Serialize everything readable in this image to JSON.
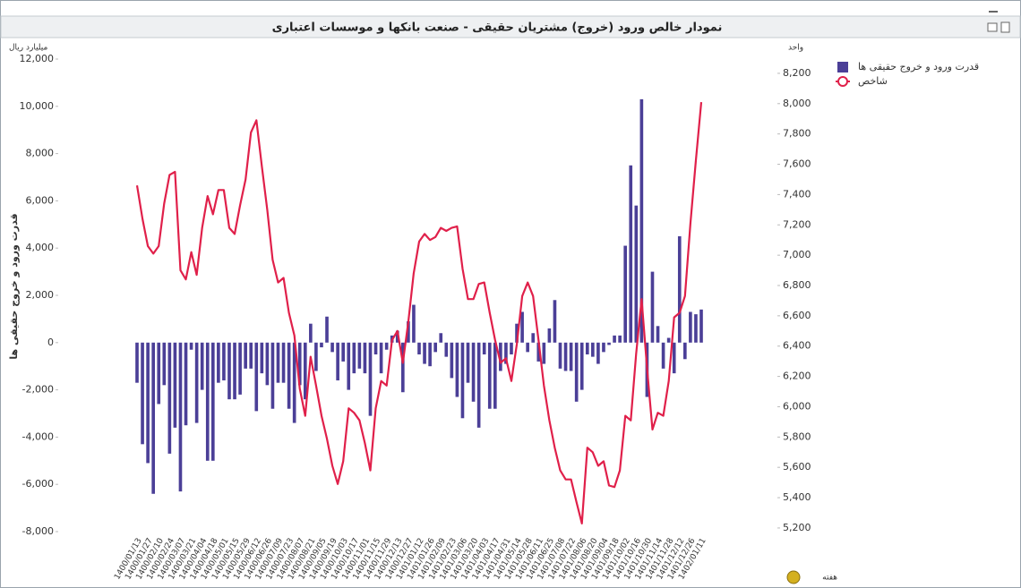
{
  "chart_data": {
    "type": "bar-line",
    "title": "نمودار خالص ورود (خروج) مشتریان حقیقی - صنعت بانکها و موسسات اعتباری",
    "y_unit": "میلیارد ریال",
    "y2_unit": "واحد",
    "ylabel": "قدرت ورود و خروج حقیقی ها",
    "xlabel": "هفته",
    "categories": [
      "1400/01/13",
      null,
      "1400/01/27",
      null,
      "1400/02/10",
      null,
      "1400/02/24",
      null,
      "1400/03/07",
      null,
      "1400/03/21",
      null,
      "1400/04/04",
      null,
      "1400/04/18",
      null,
      "1400/05/01",
      null,
      "1400/05/15",
      null,
      "1400/05/29",
      null,
      "1400/06/12",
      null,
      "1400/06/26",
      null,
      "1400/07/09",
      null,
      "1400/07/23",
      null,
      "1400/08/07",
      null,
      "1400/08/21",
      null,
      "1400/09/05",
      null,
      "1400/09/19",
      null,
      "1400/10/03",
      null,
      "1400/10/17",
      null,
      "1400/11/01",
      null,
      "1400/11/15",
      null,
      "1400/11/29",
      null,
      "1400/12/13",
      null,
      "1400/12/27",
      null,
      "1401/01/12",
      null,
      "1401/01/26",
      null,
      "1401/02/09",
      null,
      "1401/02/23",
      null,
      "1401/03/06",
      null,
      "1401/03/20",
      null,
      "1401/04/03",
      null,
      "1401/04/17",
      null,
      "1401/04/31",
      null,
      "1401/05/14",
      null,
      "1401/05/28",
      null,
      "1401/06/11",
      null,
      "1401/06/25",
      null,
      "1401/07/08",
      null,
      "1401/07/22",
      null,
      "1401/08/06",
      null,
      "1401/08/20",
      null,
      "1401/09/04",
      null,
      "1401/09/18",
      null,
      "1401/10/02",
      null,
      "1401/10/16",
      null,
      "1401/10/30",
      null,
      "1401/11/14",
      null,
      "1401/11/28",
      null,
      "1401/12/12",
      null,
      "1401/12/26",
      null,
      "1402/01/11"
    ],
    "series": [
      {
        "name": "قدرت ورود و خروج حقیقی ها",
        "type": "bar",
        "color": "#4b3f97",
        "values": [
          -1700,
          -4300,
          -5100,
          -6400,
          -2600,
          -1800,
          -4700,
          -3600,
          -6300,
          -3500,
          -300,
          -3400,
          -2000,
          -5000,
          -5000,
          -1700,
          -1600,
          -2400,
          -2400,
          -2200,
          -1100,
          -1100,
          -2900,
          -1300,
          -1800,
          -2800,
          -1700,
          -1700,
          -2800,
          -3400,
          -1800,
          -2400,
          800,
          -1200,
          -200,
          1100,
          -400,
          -1600,
          -800,
          -2000,
          -1300,
          -1100,
          -1300,
          -3100,
          -500,
          -1300,
          -300,
          300,
          500,
          -2100,
          900,
          1600,
          -500,
          -900,
          -1000,
          -400,
          400,
          -600,
          -1500,
          -2300,
          -3200,
          -1700,
          -2500,
          -3600,
          -500,
          -2800,
          -2800,
          -1200,
          -900,
          -500,
          800,
          1300,
          -400,
          400,
          -800,
          -900,
          600,
          1800,
          -1100,
          -1200,
          -1200,
          -2500,
          -2000,
          -500,
          -600,
          -900,
          -400,
          -100,
          300,
          300,
          4100,
          7500,
          5800,
          10300,
          -2300,
          3000,
          700,
          -1100,
          200,
          -1300,
          4500,
          -700,
          1300,
          1200,
          1400
        ]
      },
      {
        "name": "شاخص",
        "type": "line",
        "axis": "y2",
        "color": "#e0204a",
        "values": [
          7460,
          7240,
          7060,
          7010,
          7060,
          7340,
          7530,
          7550,
          6900,
          6840,
          7020,
          6870,
          7180,
          7390,
          7270,
          7430,
          7430,
          7180,
          7140,
          7330,
          7500,
          7810,
          7890,
          7590,
          7300,
          6970,
          6820,
          6850,
          6620,
          6470,
          6120,
          5940,
          6330,
          6140,
          5940,
          5790,
          5610,
          5490,
          5640,
          5990,
          5960,
          5910,
          5760,
          5580,
          5990,
          6170,
          6140,
          6440,
          6500,
          6290,
          6560,
          6880,
          7090,
          7140,
          7100,
          7120,
          7180,
          7160,
          7180,
          7190,
          6910,
          6710,
          6710,
          6810,
          6820,
          6620,
          6440,
          6290,
          6320,
          6170,
          6410,
          6730,
          6820,
          6730,
          6440,
          6140,
          5910,
          5730,
          5580,
          5520,
          5520,
          5370,
          5230,
          5730,
          5700,
          5610,
          5640,
          5480,
          5470,
          5580,
          5940,
          5910,
          6350,
          6710,
          6260,
          5850,
          5960,
          5940,
          6170,
          6590,
          6620,
          6730,
          7210,
          7620,
          8010
        ]
      }
    ],
    "ylim": [
      -8000,
      12000
    ],
    "yticks": [
      {
        "value": -8000,
        "label": "-8,000"
      },
      {
        "value": -6000,
        "label": "-6,000"
      },
      {
        "value": -4000,
        "label": "-4,000"
      },
      {
        "value": -2000,
        "label": "-2,000"
      },
      0,
      {
        "value": 2000,
        "label": "2,000"
      },
      {
        "value": 4000,
        "label": "4,000"
      },
      {
        "value": 6000,
        "label": "6,000"
      },
      {
        "value": 8000,
        "label": "8,000"
      },
      {
        "value": 10000,
        "label": "10,000"
      },
      {
        "value": 12000,
        "label": "12,000"
      }
    ],
    "y2lim": [
      5176,
      8294
    ],
    "y2ticks": [
      {
        "value": 5200,
        "label": "5,200"
      },
      {
        "value": 5400,
        "label": "5,400"
      },
      {
        "value": 5600,
        "label": "5,600"
      },
      {
        "value": 5800,
        "label": "5,800"
      },
      {
        "value": 6000,
        "label": "6,000"
      },
      {
        "value": 6200,
        "label": "6,200"
      },
      {
        "value": 6400,
        "label": "6,400"
      },
      {
        "value": 6600,
        "label": "6,600"
      },
      {
        "value": 6800,
        "label": "6,800"
      },
      {
        "value": 7000,
        "label": "7,000"
      },
      {
        "value": 7200,
        "label": "7,200"
      },
      {
        "value": 7400,
        "label": "7,400"
      },
      {
        "value": 7600,
        "label": "7,600"
      },
      {
        "value": 7800,
        "label": "7,800"
      },
      {
        "value": 8000,
        "label": "8,000"
      },
      {
        "value": 8200,
        "label": "8,200"
      }
    ],
    "grid": false,
    "legend": "top-right"
  }
}
